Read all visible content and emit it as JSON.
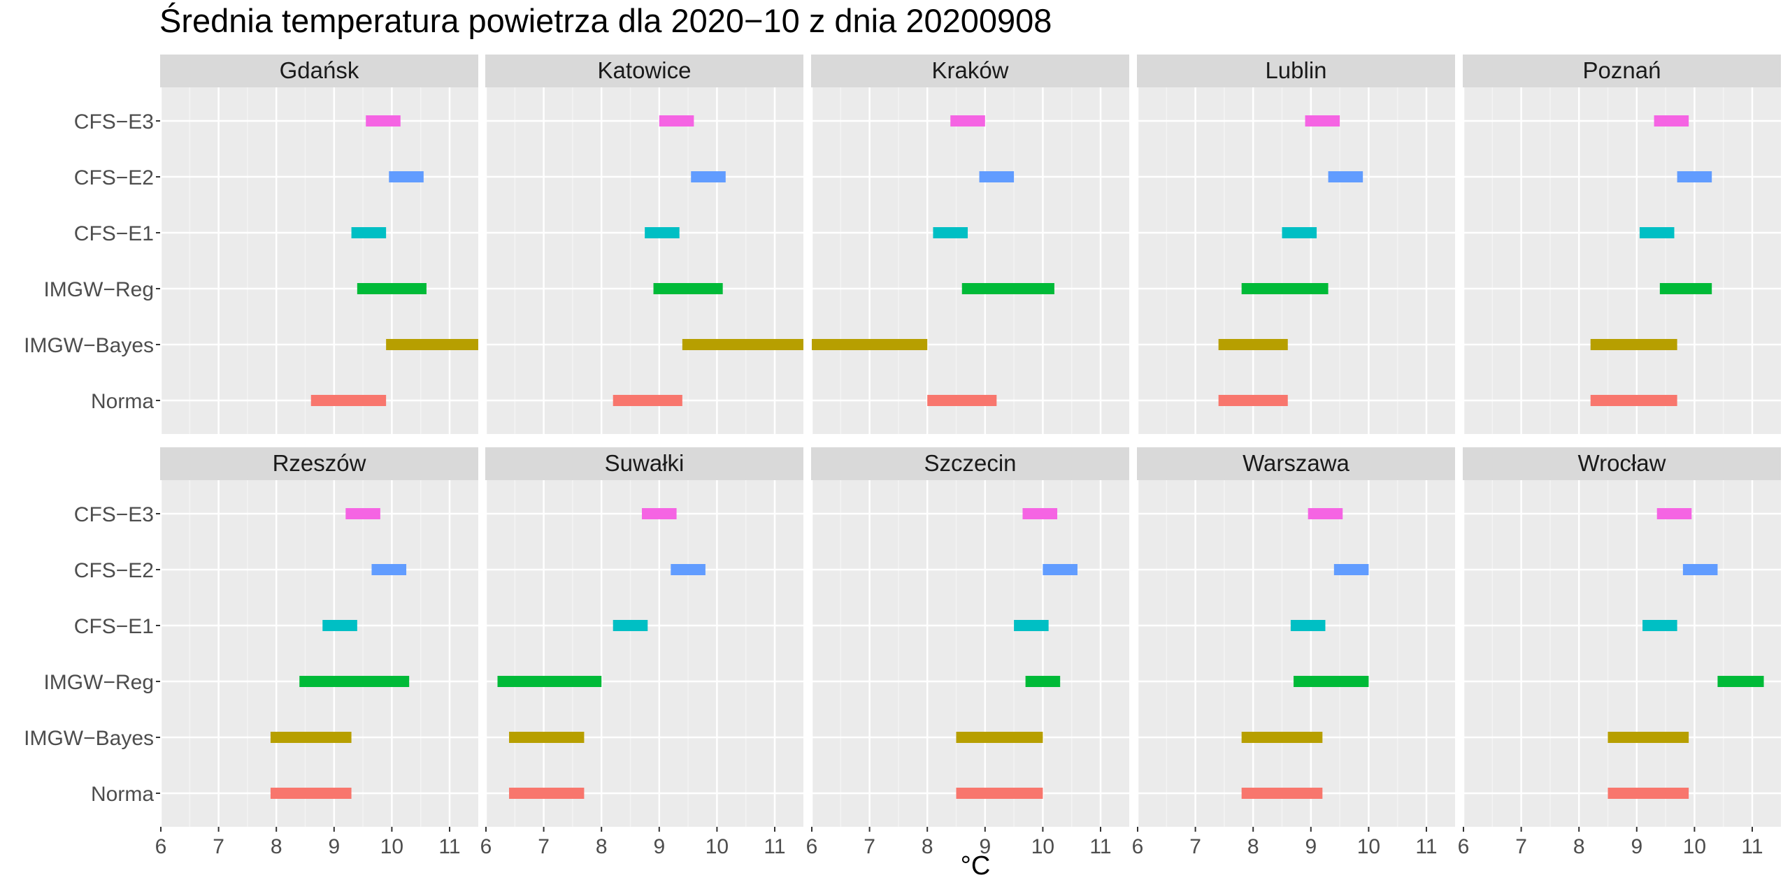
{
  "chart_data": {
    "type": "range-bar-facets",
    "title": "Średnia temperatura powietrza dla 2020−10 z dnia 20200908",
    "xlabel": "°C",
    "ylabel": "",
    "xlim": [
      6,
      11.5
    ],
    "xticks": [
      6,
      7,
      8,
      9,
      10,
      11
    ],
    "grid": true,
    "legend": "none",
    "categories": [
      "CFS−E3",
      "CFS−E2",
      "CFS−E1",
      "IMGW−Reg",
      "IMGW−Bayes",
      "Norma"
    ],
    "colors": {
      "CFS−E3": "#F564E3",
      "CFS−E2": "#619CFF",
      "CFS−E1": "#00BFC4",
      "IMGW−Reg": "#00BA38",
      "IMGW−Bayes": "#B79F00",
      "Norma": "#F8766D"
    },
    "panels": [
      {
        "name": "Gdańsk",
        "ranges": {
          "CFS−E3": [
            9.55,
            10.15
          ],
          "CFS−E2": [
            9.95,
            10.55
          ],
          "CFS−E1": [
            9.3,
            9.9
          ],
          "IMGW−Reg": [
            9.4,
            10.6
          ],
          "IMGW−Bayes": [
            9.9,
            11.5
          ],
          "Norma": [
            8.6,
            9.9
          ]
        }
      },
      {
        "name": "Katowice",
        "ranges": {
          "CFS−E3": [
            9.0,
            9.6
          ],
          "CFS−E2": [
            9.55,
            10.15
          ],
          "CFS−E1": [
            8.75,
            9.35
          ],
          "IMGW−Reg": [
            8.9,
            10.1
          ],
          "IMGW−Bayes": [
            9.4,
            11.5
          ],
          "Norma": [
            8.2,
            9.4
          ]
        }
      },
      {
        "name": "Kraków",
        "ranges": {
          "CFS−E3": [
            8.4,
            9.0
          ],
          "CFS−E2": [
            8.9,
            9.5
          ],
          "CFS−E1": [
            8.1,
            8.7
          ],
          "IMGW−Reg": [
            8.6,
            10.2
          ],
          "IMGW−Bayes": [
            6.0,
            8.0
          ],
          "Norma": [
            8.0,
            9.2
          ]
        }
      },
      {
        "name": "Lublin",
        "ranges": {
          "CFS−E3": [
            8.9,
            9.5
          ],
          "CFS−E2": [
            9.3,
            9.9
          ],
          "CFS−E1": [
            8.5,
            9.1
          ],
          "IMGW−Reg": [
            7.8,
            9.3
          ],
          "IMGW−Bayes": [
            7.4,
            8.6
          ],
          "Norma": [
            7.4,
            8.6
          ]
        }
      },
      {
        "name": "Poznań",
        "ranges": {
          "CFS−E3": [
            9.3,
            9.9
          ],
          "CFS−E2": [
            9.7,
            10.3
          ],
          "CFS−E1": [
            9.05,
            9.65
          ],
          "IMGW−Reg": [
            9.4,
            10.3
          ],
          "IMGW−Bayes": [
            8.2,
            9.7
          ],
          "Norma": [
            8.2,
            9.7
          ]
        }
      },
      {
        "name": "Rzeszów",
        "ranges": {
          "CFS−E3": [
            9.2,
            9.8
          ],
          "CFS−E2": [
            9.65,
            10.25
          ],
          "CFS−E1": [
            8.8,
            9.4
          ],
          "IMGW−Reg": [
            8.4,
            10.3
          ],
          "IMGW−Bayes": [
            7.9,
            9.3
          ],
          "Norma": [
            7.9,
            9.3
          ]
        }
      },
      {
        "name": "Suwałki",
        "ranges": {
          "CFS−E3": [
            8.7,
            9.3
          ],
          "CFS−E2": [
            9.2,
            9.8
          ],
          "CFS−E1": [
            8.2,
            8.8
          ],
          "IMGW−Reg": [
            6.2,
            8.0
          ],
          "IMGW−Bayes": [
            6.4,
            7.7
          ],
          "Norma": [
            6.4,
            7.7
          ]
        }
      },
      {
        "name": "Szczecin",
        "ranges": {
          "CFS−E3": [
            9.65,
            10.25
          ],
          "CFS−E2": [
            10.0,
            10.6
          ],
          "CFS−E1": [
            9.5,
            10.1
          ],
          "IMGW−Reg": [
            9.7,
            10.3
          ],
          "IMGW−Bayes": [
            8.5,
            10.0
          ],
          "Norma": [
            8.5,
            10.0
          ]
        }
      },
      {
        "name": "Warszawa",
        "ranges": {
          "CFS−E3": [
            8.95,
            9.55
          ],
          "CFS−E2": [
            9.4,
            10.0
          ],
          "CFS−E1": [
            8.65,
            9.25
          ],
          "IMGW−Reg": [
            8.7,
            10.0
          ],
          "IMGW−Bayes": [
            7.8,
            9.2
          ],
          "Norma": [
            7.8,
            9.2
          ]
        }
      },
      {
        "name": "Wrocław",
        "ranges": {
          "CFS−E3": [
            9.35,
            9.95
          ],
          "CFS−E2": [
            9.8,
            10.4
          ],
          "CFS−E1": [
            9.1,
            9.7
          ],
          "IMGW−Reg": [
            10.4,
            11.2
          ],
          "IMGW−Bayes": [
            8.5,
            9.9
          ],
          "Norma": [
            8.5,
            9.9
          ]
        }
      }
    ]
  }
}
